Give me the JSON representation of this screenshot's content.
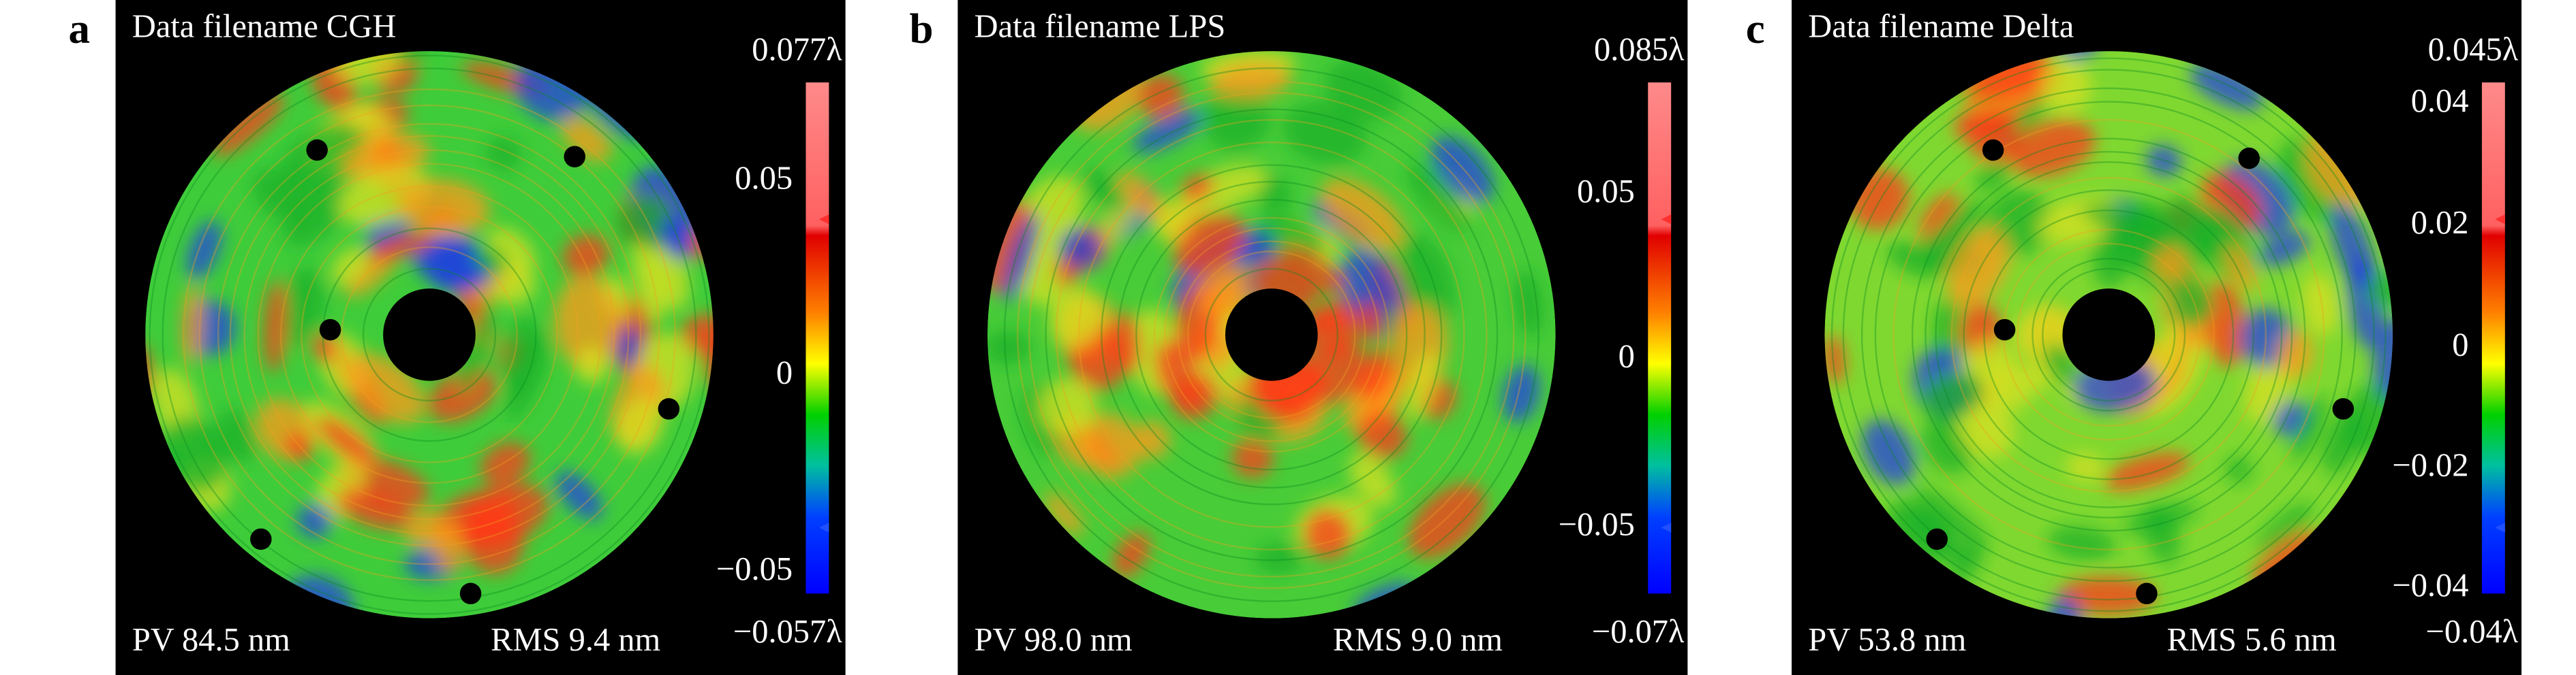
{
  "panels": [
    {
      "letter": "a",
      "title": "Data filename CGH",
      "colorbar": {
        "max_label": "0.077λ",
        "min_label": "−0.057λ",
        "ticks": [
          "0.05",
          "0",
          "−0.05"
        ]
      },
      "pv": "PV 84.5 nm",
      "rms": "RMS 9.4 nm"
    },
    {
      "letter": "b",
      "title": "Data filename LPS",
      "colorbar": {
        "max_label": "0.085λ",
        "min_label": "−0.07λ",
        "ticks": [
          "0.05",
          "0",
          "−0.05"
        ]
      },
      "pv": "PV 98.0 nm",
      "rms": "RMS 9.0 nm"
    },
    {
      "letter": "c",
      "title": "Data filename Delta",
      "colorbar": {
        "max_label": "0.045λ",
        "min_label": "−0.04λ",
        "ticks": [
          "0.04",
          "0.02",
          "0",
          "−0.02",
          "−0.04"
        ]
      },
      "pv": "PV 53.8 nm",
      "rms": "RMS 5.6 nm"
    }
  ]
}
